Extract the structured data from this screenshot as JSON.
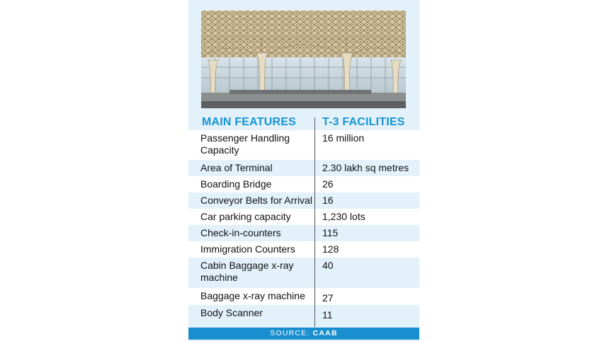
{
  "header": {
    "main_features": "MAIN FEATURES",
    "t3_facilities": "T-3 FACILITIES"
  },
  "rows": [
    {
      "feature": "Passenger Handling Capacity",
      "value": "16 million"
    },
    {
      "feature": "Area of Terminal",
      "value": "2.30 lakh sq metres"
    },
    {
      "feature": "Boarding Bridge",
      "value": "26"
    },
    {
      "feature": "Conveyor Belts for Arrival",
      "value": "16"
    },
    {
      "feature": "Car parking capacity",
      "value": "1,230 lots"
    },
    {
      "feature": "Check-in-counters",
      "value": "115"
    },
    {
      "feature": "Immigration Counters",
      "value": "128"
    },
    {
      "feature": "Cabin Baggage x-ray machine",
      "value": "40"
    },
    {
      "feature": "Baggage x-ray machine",
      "value": "27"
    },
    {
      "feature": "Body Scanner",
      "value": "11"
    }
  ],
  "source": {
    "label": "SOURCE:",
    "name": "CAAB"
  },
  "colors": {
    "accent": "#1794d4",
    "panel": "#e3f1fa",
    "footer": "#1a8fd0"
  },
  "photo": {
    "icon": "terminal-interior-photo"
  }
}
